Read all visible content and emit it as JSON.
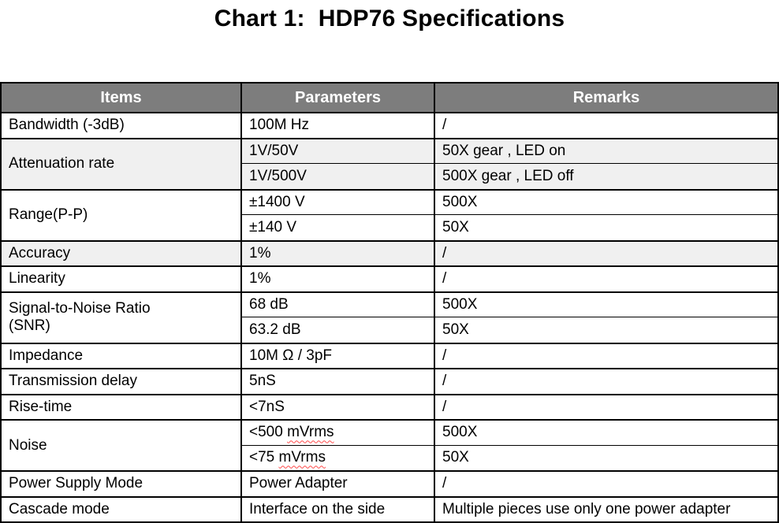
{
  "title": "Chart 1:  HDP76 Specifications",
  "colors": {
    "header_bg": "#7d7d7d",
    "header_text": "#ffffff",
    "shaded_row_bg": "#f0f0f0",
    "border": "#000000",
    "spellcheck_underline": "#ff4a4a"
  },
  "table": {
    "headers": [
      "Items",
      "Parameters",
      "Remarks"
    ],
    "groups": [
      {
        "item": "Bandwidth (-3dB)",
        "rows": [
          {
            "parameter": "100M Hz",
            "remark": "/"
          }
        ]
      },
      {
        "item": "Attenuation rate",
        "rows": [
          {
            "parameter": "1V/50V",
            "remark": "50X gear , LED on"
          },
          {
            "parameter": "1V/500V",
            "remark": "500X gear , LED off"
          }
        ]
      },
      {
        "item": "Range(P-P)",
        "rows": [
          {
            "parameter": "±1400 V",
            "remark": "500X"
          },
          {
            "parameter": "±140 V",
            "remark": "50X"
          }
        ]
      },
      {
        "item": "Accuracy",
        "rows": [
          {
            "parameter": "1%",
            "remark": "/"
          }
        ]
      },
      {
        "item": "Linearity",
        "rows": [
          {
            "parameter": "1%",
            "remark": "/"
          }
        ]
      },
      {
        "item": "Signal-to-Noise Ratio\n(SNR)",
        "rows": [
          {
            "parameter": "68 dB",
            "remark": "500X"
          },
          {
            "parameter": "63.2 dB",
            "remark": "50X"
          }
        ]
      },
      {
        "item": "Impedance",
        "rows": [
          {
            "parameter": "10M Ω / 3pF",
            "remark": "/"
          }
        ]
      },
      {
        "item": "Transmission delay",
        "rows": [
          {
            "parameter": "5nS",
            "remark": "/"
          }
        ]
      },
      {
        "item": "Rise-time",
        "rows": [
          {
            "parameter": "<7nS",
            "remark": "/"
          }
        ]
      },
      {
        "item": "Noise",
        "rows": [
          {
            "parameter_prefix": "<500 ",
            "parameter_word": "mVrms",
            "remark": "500X"
          },
          {
            "parameter_prefix": "<75 ",
            "parameter_word": "mVrms",
            "remark": "50X"
          }
        ]
      },
      {
        "item": "Power Supply Mode",
        "rows": [
          {
            "parameter": "Power Adapter",
            "remark": "/"
          }
        ]
      },
      {
        "item": "Cascade mode",
        "rows": [
          {
            "parameter": "Interface on the side",
            "remark": "Multiple pieces use only one power adapter"
          }
        ]
      }
    ]
  }
}
